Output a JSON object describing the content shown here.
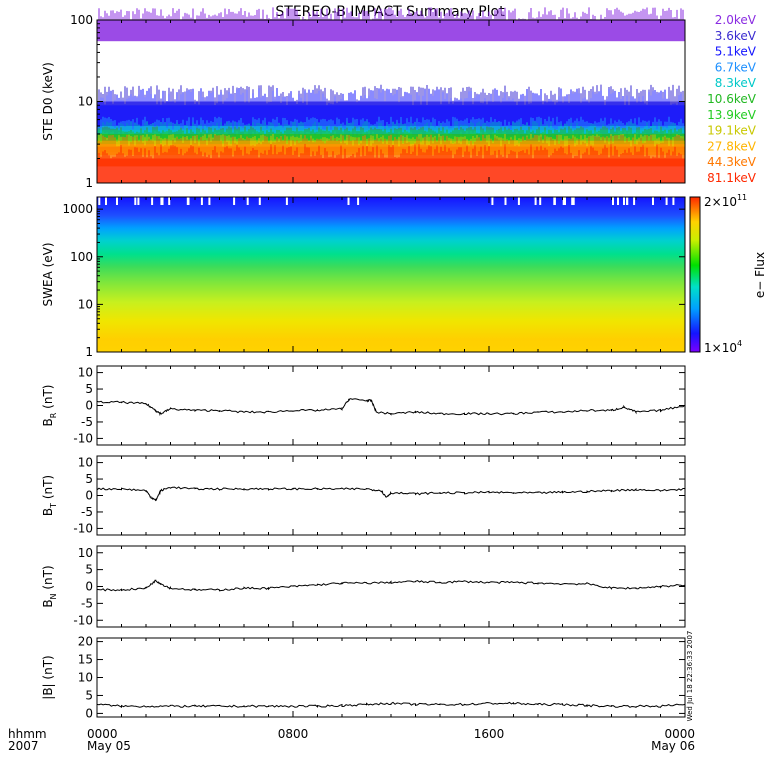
{
  "title": "STEREO-B IMPACT Summary Plot",
  "timestamp": "Wed Jul 18 22:36:33 2007",
  "xaxis": {
    "corner_labels": [
      "hhmm",
      "2007"
    ],
    "ticks": [
      {
        "label": "0000",
        "sub": "May 05",
        "hour": 0
      },
      {
        "label": "0800",
        "sub": "",
        "hour": 8
      },
      {
        "label": "1600",
        "sub": "",
        "hour": 16
      },
      {
        "label": "0000",
        "sub": "May 06",
        "hour": 24
      }
    ]
  },
  "colorbar": {
    "label": "e− Flux",
    "max_base": "2×10",
    "max_exp": "11",
    "min_base": "1×10",
    "min_exp": "4"
  },
  "chart_data": [
    {
      "type": "line",
      "ylabel": "STE D0 (keV)",
      "yscale": "log",
      "ylim": [
        1,
        100
      ],
      "yticks": [
        1,
        10,
        100
      ],
      "x_range_hours": [
        0,
        24
      ],
      "series": [
        {
          "name": "2.0keV",
          "color": "#8a2be2",
          "band": [
            55,
            100
          ]
        },
        {
          "name": "3.6keV",
          "color": "#3a2bd0",
          "band": [
            4.5,
            10
          ]
        },
        {
          "name": "5.1keV",
          "color": "#1414ff",
          "band": [
            4,
            9
          ]
        },
        {
          "name": "6.7keV",
          "color": "#1e90ff",
          "band": [
            3.2,
            5
          ]
        },
        {
          "name": "8.3keV",
          "color": "#00c8c8",
          "band": [
            3,
            4.5
          ]
        },
        {
          "name": "10.6keV",
          "color": "#22b822",
          "band": [
            2.8,
            4
          ]
        },
        {
          "name": "13.9keV",
          "color": "#22cc22",
          "band": [
            2.6,
            3.6
          ]
        },
        {
          "name": "19.1keV",
          "color": "#c8c800",
          "band": [
            2.4,
            3.3
          ]
        },
        {
          "name": "27.8keV",
          "color": "#ffb400",
          "band": [
            2.2,
            3.0
          ]
        },
        {
          "name": "44.3keV",
          "color": "#ff7800",
          "band": [
            1.6,
            2.8
          ]
        },
        {
          "name": "81.1keV",
          "color": "#ff2800",
          "band": [
            1,
            2.0
          ]
        }
      ]
    },
    {
      "type": "heatmap",
      "ylabel": "SWEA (eV)",
      "yscale": "log",
      "ylim": [
        1,
        1800
      ],
      "yticks": [
        1,
        10,
        100,
        1000
      ],
      "x_range_hours": [
        0,
        24
      ],
      "zscale": "log",
      "zlim": [
        10000,
        200000000000
      ]
    },
    {
      "type": "line",
      "ylabel": "B_R (nT)",
      "ylim": [
        -12,
        12
      ],
      "yticks": [
        -10,
        -5,
        0,
        5,
        10
      ],
      "series": [
        {
          "x": [
            0,
            1,
            2,
            2.4,
            2.6,
            3,
            4,
            5,
            6,
            7,
            8,
            9,
            10,
            10.3,
            11,
            11.2,
            11.4,
            12,
            13,
            14,
            15,
            16,
            17,
            18,
            19,
            20,
            21,
            21.5,
            22,
            23,
            24
          ],
          "y": [
            1,
            1,
            0.5,
            -1.5,
            -2.5,
            -1,
            -1.5,
            -1.5,
            -2,
            -2,
            -1.5,
            -1.5,
            -1,
            2,
            1.5,
            1.5,
            -2,
            -2.5,
            -2,
            -2.5,
            -2.5,
            -2.5,
            -2.5,
            -2,
            -2,
            -1.5,
            -1.5,
            -0.5,
            -2,
            -1.5,
            0
          ]
        }
      ]
    },
    {
      "type": "line",
      "ylabel": "B_T (nT)",
      "ylim": [
        -12,
        12
      ],
      "yticks": [
        -10,
        -5,
        0,
        5,
        10
      ],
      "series": [
        {
          "x": [
            0,
            1,
            2,
            2.2,
            2.4,
            2.6,
            3,
            4,
            5,
            6,
            7,
            8,
            9,
            10,
            11,
            11.6,
            11.8,
            12,
            13,
            14,
            15,
            16,
            17,
            18,
            19,
            20,
            21,
            22,
            23,
            24
          ],
          "y": [
            2,
            2,
            1.5,
            -0.5,
            -1.5,
            1.5,
            2.5,
            2,
            2,
            2,
            2,
            2,
            2,
            2,
            2,
            1.5,
            -0.5,
            0.8,
            0.5,
            0.8,
            0.8,
            1,
            0.8,
            0.8,
            1,
            1.2,
            1.5,
            1.8,
            1.5,
            2
          ]
        }
      ]
    },
    {
      "type": "line",
      "ylabel": "B_N (nT)",
      "ylim": [
        -12,
        12
      ],
      "yticks": [
        -10,
        -5,
        0,
        5,
        10
      ],
      "series": [
        {
          "x": [
            0,
            1,
            2,
            2.4,
            2.6,
            3,
            4,
            5,
            6,
            7,
            8,
            9,
            10,
            11,
            12,
            13,
            14,
            15,
            16,
            17,
            18,
            19,
            20,
            21,
            22,
            23,
            24
          ],
          "y": [
            -1,
            -1,
            -0.5,
            1.8,
            0.8,
            -0.5,
            -1,
            -1,
            -0.5,
            -0.5,
            0,
            0.5,
            1,
            1,
            1.2,
            1.5,
            1.2,
            1.5,
            1.2,
            1.2,
            1,
            0.8,
            0.8,
            -0.5,
            -0.5,
            0,
            0.5
          ]
        }
      ]
    },
    {
      "type": "line",
      "ylabel": "|B| (nT)",
      "ylim": [
        -1,
        21
      ],
      "yticks": [
        0,
        5,
        10,
        15,
        20
      ],
      "series": [
        {
          "x": [
            0,
            1,
            2,
            3,
            4,
            5,
            6,
            7,
            8,
            9,
            10,
            11,
            12,
            13,
            14,
            15,
            16,
            17,
            18,
            19,
            20,
            21,
            22,
            23,
            24
          ],
          "y": [
            2.5,
            2,
            2,
            2,
            2,
            2,
            2,
            2,
            2,
            2,
            2.2,
            2.5,
            2.8,
            2.5,
            2.5,
            2.5,
            2.8,
            2.8,
            2.5,
            2.5,
            2.2,
            2,
            2,
            2,
            2.5
          ]
        }
      ]
    }
  ]
}
